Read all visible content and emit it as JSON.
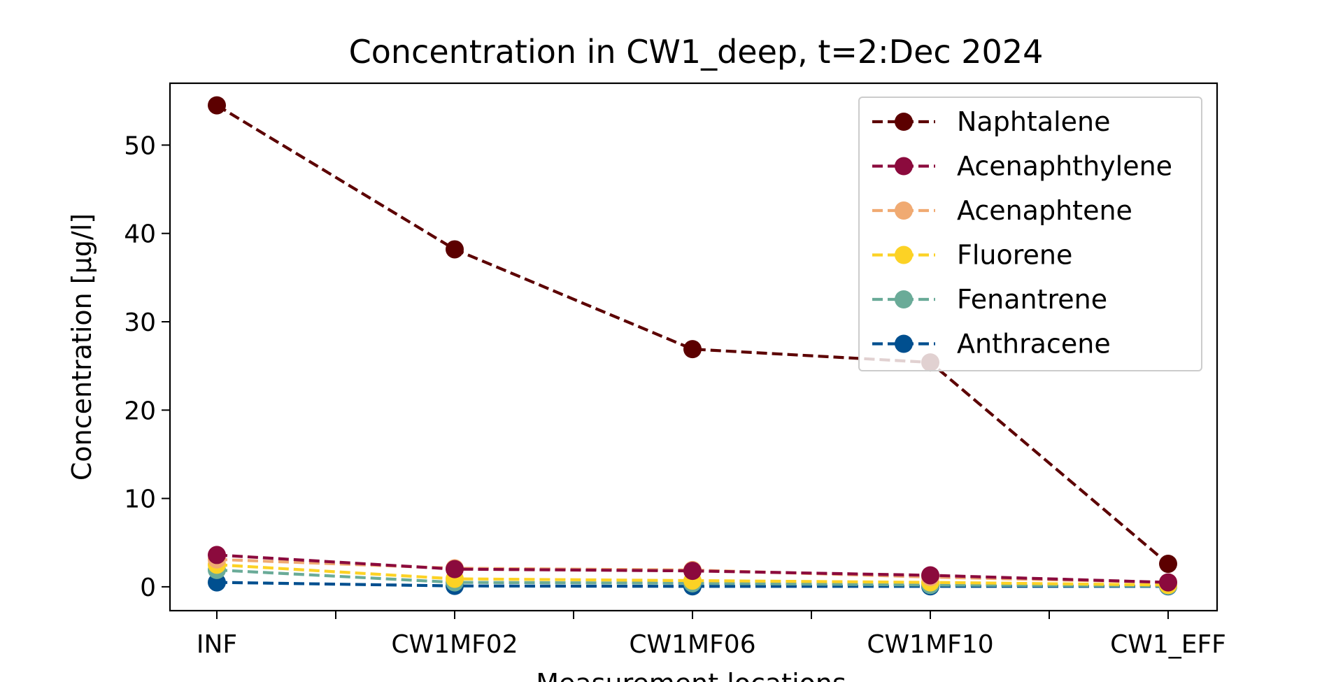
{
  "chart_data": {
    "type": "line",
    "title": "Concentration in CW1_deep, t=2:Dec 2024",
    "xlabel": "Measurement locations",
    "ylabel": "Concentration [µg/l]",
    "categories": [
      "INF",
      "CW1MF02",
      "CW1MF06",
      "CW1MF10",
      "CW1_EFF"
    ],
    "ylim": [
      -2.7,
      57
    ],
    "yticks": [
      0,
      10,
      20,
      30,
      40,
      50
    ],
    "grid": false,
    "legend_position": "top-right",
    "line_style": "dashed",
    "marker": "circle",
    "series": [
      {
        "name": "Naphtalene",
        "color": "#5c0000",
        "values": [
          54.5,
          38.2,
          26.9,
          25.4,
          2.6
        ]
      },
      {
        "name": "Acenaphthylene",
        "color": "#8b0a3d",
        "values": [
          3.6,
          2.0,
          1.8,
          1.3,
          0.5
        ]
      },
      {
        "name": "Acenaphtene",
        "color": "#f0aa72",
        "values": [
          3.1,
          2.1,
          1.9,
          1.1,
          0.5
        ]
      },
      {
        "name": "Fluorene",
        "color": "#fcd225",
        "values": [
          2.5,
          0.9,
          0.7,
          0.5,
          0.2
        ]
      },
      {
        "name": "Fenantrene",
        "color": "#6aab98",
        "values": [
          1.9,
          0.5,
          0.4,
          0.2,
          0.1
        ]
      },
      {
        "name": "Anthracene",
        "color": "#004f8f",
        "values": [
          0.5,
          0.1,
          0.05,
          0.05,
          0.05
        ]
      }
    ]
  }
}
